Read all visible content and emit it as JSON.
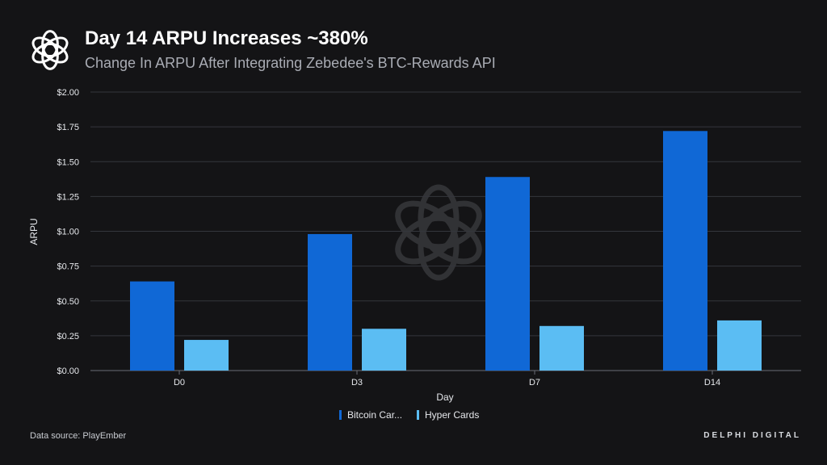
{
  "header": {
    "title": "Day 14 ARPU Increases ~380%",
    "subtitle": "Change In ARPU After Integrating Zebedee's BTC-Rewards API",
    "logo_icon": "delphi-knot-logo-icon"
  },
  "footer": {
    "source": "Data source: PlayEmber",
    "brand": "DELPHI DIGITAL"
  },
  "chart_data": {
    "type": "bar",
    "xlabel": "Day",
    "ylabel": "ARPU",
    "categories": [
      "D0",
      "D3",
      "D7",
      "D14"
    ],
    "series": [
      {
        "name": "Bitcoin Car...",
        "color": "#1068d6",
        "values": [
          0.64,
          0.98,
          1.39,
          1.72
        ]
      },
      {
        "name": "Hyper Cards",
        "color": "#5bbdf3",
        "values": [
          0.22,
          0.3,
          0.32,
          0.36
        ]
      }
    ],
    "ylim": [
      0,
      2.0
    ],
    "yticks": [
      0,
      0.25,
      0.5,
      0.75,
      1.0,
      1.25,
      1.5,
      1.75,
      2.0
    ],
    "ytick_labels": [
      "$0.00",
      "$0.25",
      "$0.50",
      "$0.75",
      "$1.00",
      "$1.25",
      "$1.50",
      "$1.75",
      "$2.00"
    ],
    "grid": true,
    "legend_position": "bottom-center",
    "watermark_icon": "delphi-knot-watermark-icon"
  }
}
